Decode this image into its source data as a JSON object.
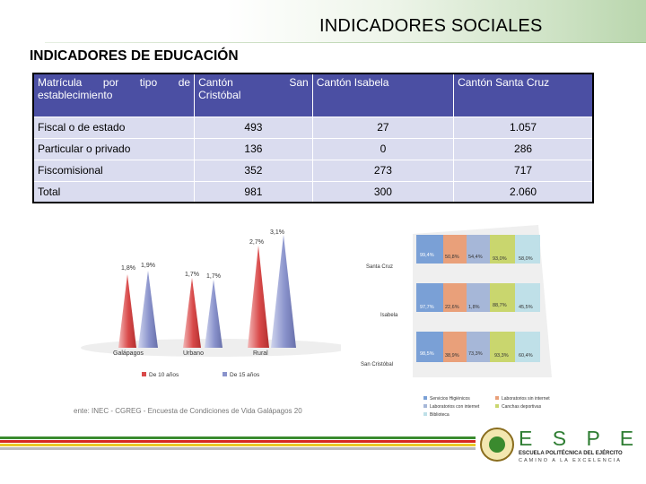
{
  "header": {
    "title": "INDICADORES SOCIALES"
  },
  "section": {
    "title": "INDICADORES DE EDUCACIÓN"
  },
  "table": {
    "headers": {
      "col1_words": [
        "Matrícula",
        "por",
        "tipo",
        "de"
      ],
      "col1_line2": "establecimiento",
      "col2_line1": "Cantón",
      "col2_line1_right": "San",
      "col2_line2": "Cristóbal",
      "col3": "Cantón Isabela",
      "col4": "Cantón Santa Cruz"
    },
    "rows": [
      {
        "label": "Fiscal o de estado",
        "san_cristobal": "493",
        "isabela": "27",
        "santa_cruz": "1.057"
      },
      {
        "label": "Particular o privado",
        "san_cristobal": "136",
        "isabela": "0",
        "santa_cruz": "286"
      },
      {
        "label": "Fiscomisional",
        "san_cristobal": "352",
        "isabela": "273",
        "santa_cruz": "717"
      },
      {
        "label": "Total",
        "san_cristobal": "981",
        "isabela": "300",
        "santa_cruz": "2.060"
      }
    ]
  },
  "cone_chart": {
    "categories": [
      "Galápagos",
      "Urbano",
      "Rural"
    ],
    "series": [
      {
        "name": "De 10 años",
        "values_label": [
          "1,8%",
          "1,7%",
          "2,7%"
        ]
      },
      {
        "name": "De 15 años",
        "values_label": [
          "1,9%",
          "1,7%",
          "3,1%"
        ]
      }
    ],
    "colors": {
      "s1": "#d94a4a",
      "s2": "#8a93cc"
    }
  },
  "cylinder_chart": {
    "categories": [
      "Santa Cruz",
      "Isabela",
      "San Cristóbal"
    ],
    "rows": [
      [
        "99,4%",
        "50,8%",
        "54,4%",
        "93,0%",
        "58,0%"
      ],
      [
        "97,7%",
        "22,6%",
        "1,8%",
        "88,7%",
        "45,5%"
      ],
      [
        "98,5%",
        "38,9%",
        "73,3%",
        "93,3%",
        "60,4%"
      ]
    ],
    "legend": [
      "Servicios Higiénicos",
      "Laboratorios sin internet",
      "Laboratorios con internet",
      "Canchas deportivas",
      "Biblioteca"
    ],
    "colors": [
      "#7aa0d6",
      "#e9a07a",
      "#a6b7d8",
      "#c9d66e",
      "#bfe0e8"
    ]
  },
  "source": {
    "text": "ente: INEC - CGREG - Encuesta de Condiciones de Vida Galápagos 20"
  },
  "logo": {
    "letters": "E S P E",
    "line1": "ESCUELA POLITÉCNICA DEL EJÉRCITO",
    "line2": "CAMINO A LA EXCELENCIA"
  }
}
